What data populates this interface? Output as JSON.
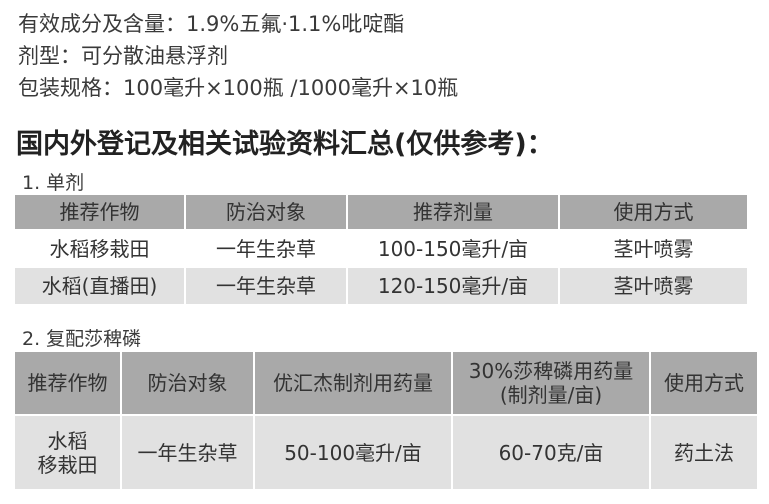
{
  "info": {
    "ingredients": "有效成分及含量：1.9%五氟·1.1%吡啶酯",
    "formulation": "剂型：可分散油悬浮剂",
    "package": "包装规格：100毫升×100瓶 /1000毫升×10瓶"
  },
  "heading": "国内外登记及相关试验资料汇总(仅供参考)：",
  "table1": {
    "title": "1. 单剂",
    "headers": [
      "推荐作物",
      "防治对象",
      "推荐剂量",
      "使用方式"
    ],
    "rows": [
      [
        "水稻移栽田",
        "一年生杂草",
        "100-150毫升/亩",
        "茎叶喷雾"
      ],
      [
        "水稻(直播田)",
        "一年生杂草",
        "120-150毫升/亩",
        "茎叶喷雾"
      ]
    ]
  },
  "table2": {
    "title": "2. 复配莎稗磷",
    "headers": [
      "推荐作物",
      "防治对象",
      "优汇杰制剂用药量",
      "30%莎稗磷用药量\n(制剂量/亩)",
      "使用方式"
    ],
    "rows": [
      [
        "水稻\n移栽田",
        "一年生杂草",
        "50-100毫升/亩",
        "60-70克/亩",
        "药土法"
      ]
    ]
  }
}
